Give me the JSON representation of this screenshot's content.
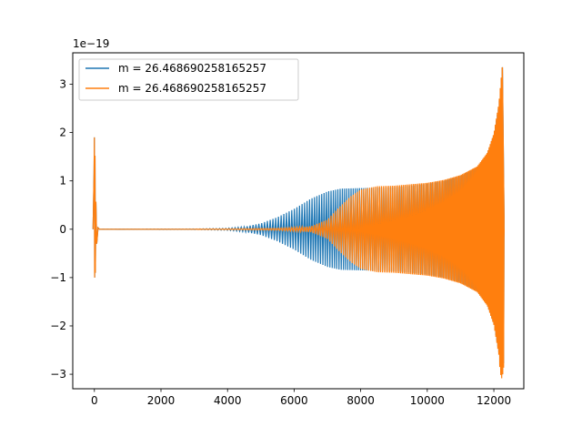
{
  "chart_data": {
    "type": "line",
    "title": "",
    "xlabel": "",
    "ylabel": "",
    "y_offset_text": "1e−19",
    "xlim": [
      -650,
      12900
    ],
    "ylim": [
      -3.3,
      3.65
    ],
    "x_ticks": [
      0,
      2000,
      4000,
      6000,
      8000,
      10000,
      12000
    ],
    "x_tick_labels": [
      "0",
      "2000",
      "4000",
      "6000",
      "8000",
      "10000",
      "12000"
    ],
    "y_ticks": [
      -3,
      -2,
      -1,
      0,
      1,
      2,
      3
    ],
    "y_tick_labels": [
      "−3",
      "−2",
      "−1",
      "0",
      "1",
      "2",
      "3"
    ],
    "grid": false,
    "legend_position": "top-left",
    "series": [
      {
        "name": "m = 26.468690258165257",
        "color": "#1f77b4",
        "initial_burst": {
          "x": 0,
          "max": 1.9,
          "min": -1.0
        },
        "envelope": [
          [
            150,
            0.0
          ],
          [
            3000,
            0.005
          ],
          [
            4000,
            0.02
          ],
          [
            4500,
            0.05
          ],
          [
            5000,
            0.12
          ],
          [
            5500,
            0.25
          ],
          [
            6000,
            0.42
          ],
          [
            6500,
            0.63
          ],
          [
            7000,
            0.78
          ],
          [
            7400,
            0.84
          ],
          [
            8000,
            0.85
          ],
          [
            8500,
            0.86
          ],
          [
            9000,
            0.87
          ],
          [
            9500,
            0.9
          ],
          [
            10000,
            0.94
          ],
          [
            10500,
            1.0
          ],
          [
            11000,
            1.1
          ],
          [
            11500,
            1.28
          ],
          [
            11800,
            1.55
          ],
          [
            12000,
            1.95
          ],
          [
            12150,
            2.55
          ],
          [
            12250,
            3.35
          ],
          [
            12290,
            1.5
          ],
          [
            12310,
            0.0
          ]
        ],
        "end_min": -2.9
      },
      {
        "name": "m = 26.468690258165257",
        "color": "#ff7f0e",
        "initial_burst": {
          "x": 0,
          "max": 1.9,
          "min": -1.0
        },
        "envelope": [
          [
            150,
            0.0
          ],
          [
            3000,
            0.0
          ],
          [
            5500,
            0.02
          ],
          [
            6500,
            0.06
          ],
          [
            7000,
            0.2
          ],
          [
            7300,
            0.42
          ],
          [
            7700,
            0.68
          ],
          [
            8000,
            0.82
          ],
          [
            8500,
            0.89
          ],
          [
            9000,
            0.9
          ],
          [
            9500,
            0.93
          ],
          [
            10000,
            0.96
          ],
          [
            10500,
            1.02
          ],
          [
            11000,
            1.12
          ],
          [
            11500,
            1.3
          ],
          [
            11800,
            1.58
          ],
          [
            12000,
            1.98
          ],
          [
            12150,
            2.6
          ],
          [
            12250,
            3.35
          ],
          [
            12290,
            1.5
          ],
          [
            12310,
            0.0
          ]
        ],
        "end_min": -3.0
      }
    ]
  }
}
